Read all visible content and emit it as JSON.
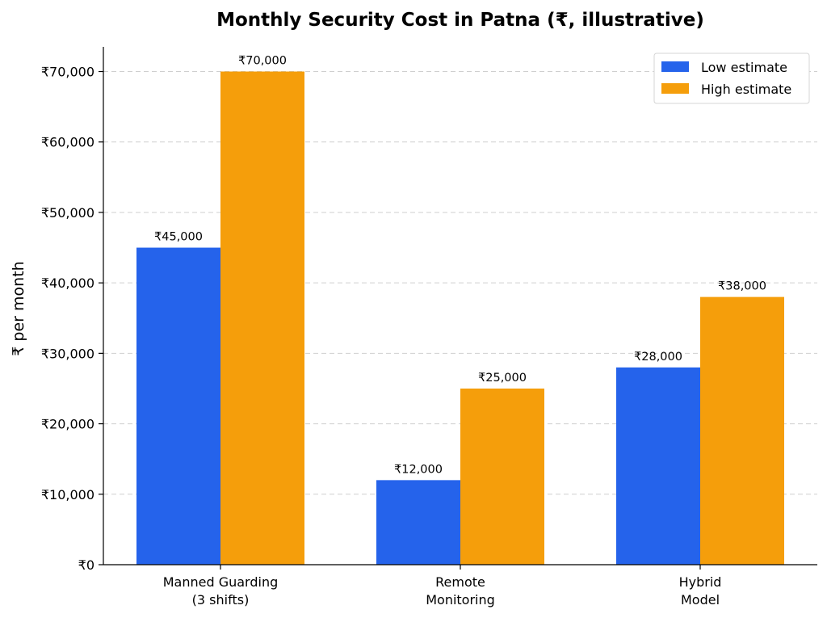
{
  "chart_data": {
    "type": "bar",
    "title": "Monthly Security Cost in Patna (₹, illustrative)",
    "xlabel": "",
    "ylabel": "₹ per month",
    "categories": [
      [
        "Manned Guarding",
        "(3 shifts)"
      ],
      [
        "Remote",
        "Monitoring"
      ],
      [
        "Hybrid",
        "Model"
      ]
    ],
    "series": [
      {
        "name": "Low estimate",
        "color": "#2563eb",
        "values": [
          45000,
          12000,
          28000
        ],
        "labels": [
          "₹45,000",
          "₹12,000",
          "₹28,000"
        ]
      },
      {
        "name": "High estimate",
        "color": "#f59e0b",
        "values": [
          70000,
          25000,
          38000
        ],
        "labels": [
          "₹70,000",
          "₹25,000",
          "₹38,000"
        ]
      }
    ],
    "ylim": [
      0,
      73500
    ],
    "yticks": [
      0,
      10000,
      20000,
      30000,
      40000,
      50000,
      60000,
      70000
    ],
    "ytick_labels": [
      "₹0",
      "₹10,000",
      "₹20,000",
      "₹30,000",
      "₹40,000",
      "₹50,000",
      "₹60,000",
      "₹70,000"
    ],
    "grid": "y-dashed",
    "legend_position": "top-right"
  }
}
